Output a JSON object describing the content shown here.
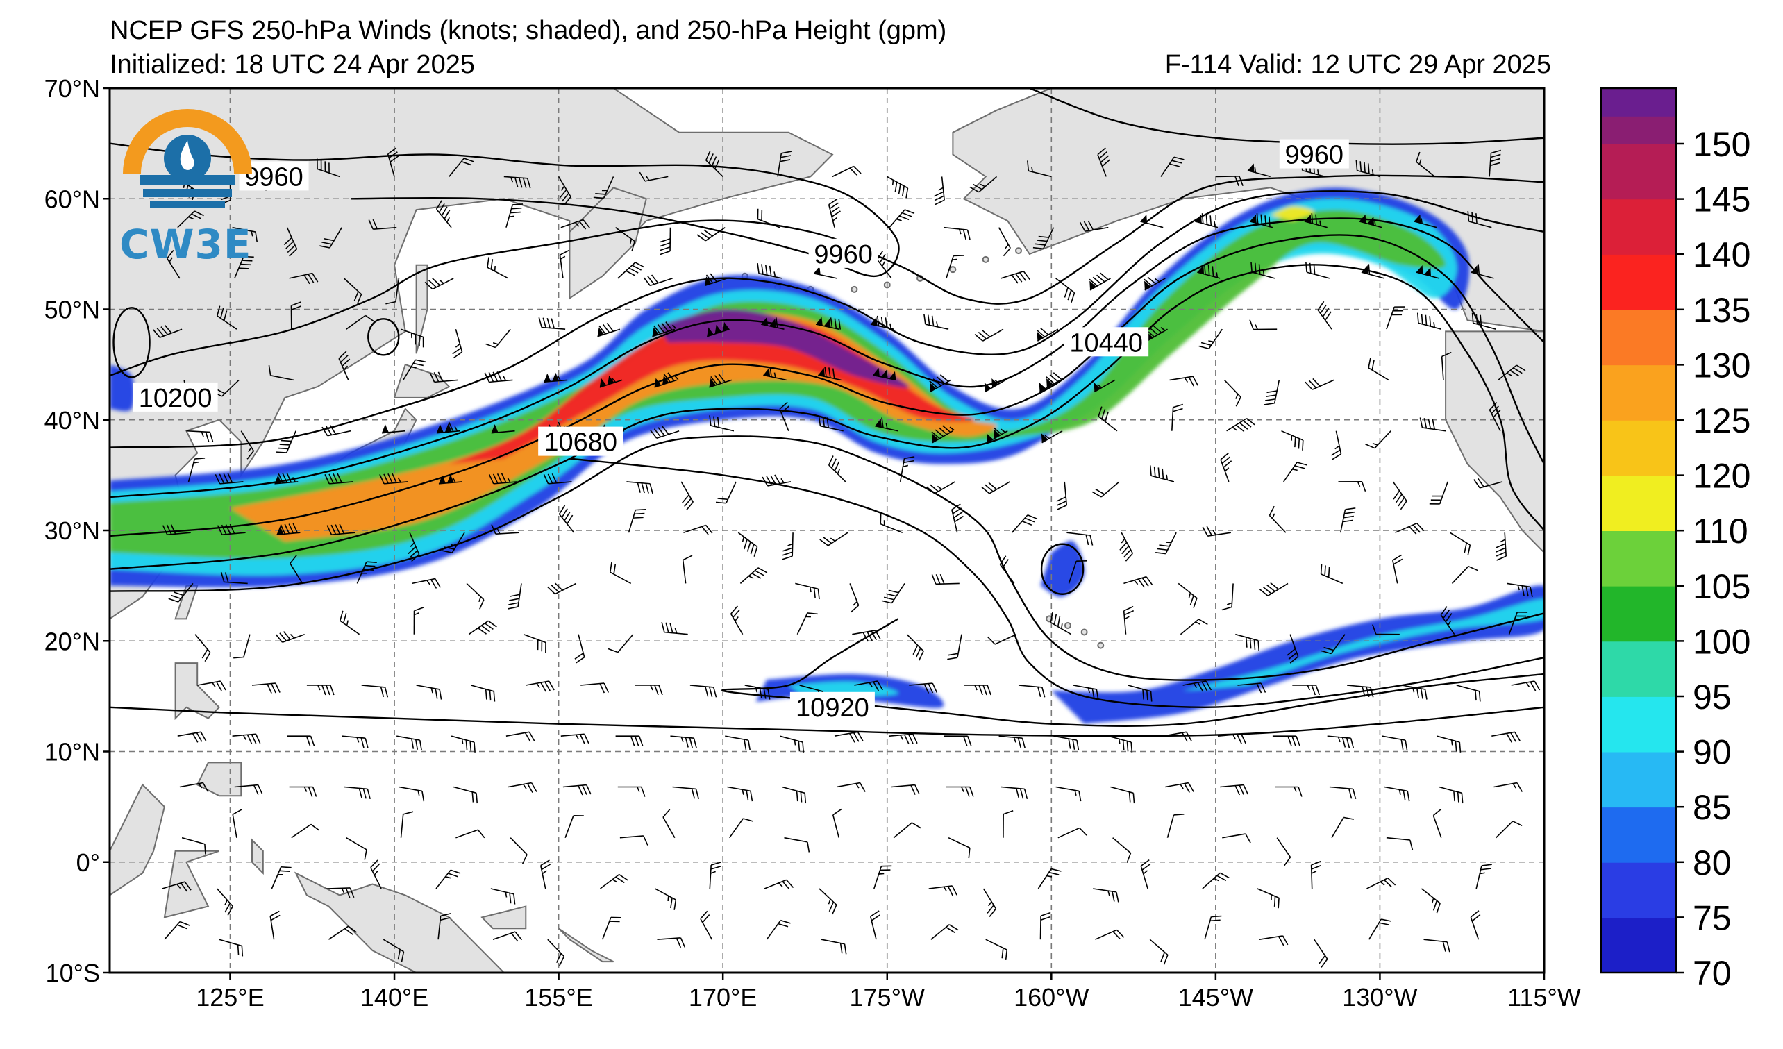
{
  "header": {
    "title": "NCEP GFS 250-hPa Winds (knots; shaded), and 250-hPa Height (gpm)",
    "initialized": "Initialized: 18 UTC 24 Apr 2025",
    "valid": "F-114  Valid: 12 UTC 29 Apr 2025"
  },
  "logo": {
    "text": "CW3E",
    "colors": [
      "#f39a1e",
      "#1c6fa8",
      "#2f8ac4"
    ]
  },
  "map": {
    "projection": "equirectangular (Pacific-centered)",
    "lon_range_deg_east": [
      114,
      245
    ],
    "lat_range": [
      -10,
      70
    ],
    "lat_ticks": [
      "70°N",
      "60°N",
      "50°N",
      "40°N",
      "30°N",
      "20°N",
      "10°N",
      "0°",
      "10°S"
    ],
    "lon_ticks": [
      "125°E",
      "140°E",
      "155°E",
      "170°E",
      "175°W",
      "160°W",
      "145°W",
      "130°W",
      "115°W"
    ],
    "land_color": "#e2e2e2",
    "coast_color": "#6e6e6e",
    "grid": true,
    "contour_labels": [
      {
        "text": "9960",
        "lon": 129,
        "lat": 62
      },
      {
        "text": "9960",
        "lon": 181,
        "lat": 55
      },
      {
        "text": "9960",
        "lon": 224,
        "lat": 64
      },
      {
        "text": "10200",
        "lon": 120,
        "lat": 42
      },
      {
        "text": "10440",
        "lon": 205,
        "lat": 47
      },
      {
        "text": "10680",
        "lon": 157,
        "lat": 38
      },
      {
        "text": "10920",
        "lon": 180,
        "lat": 14
      }
    ]
  },
  "colorbar": {
    "labels": [
      "150",
      "145",
      "140",
      "135",
      "130",
      "125",
      "120",
      "110",
      "105",
      "100",
      "95",
      "90",
      "85",
      "80",
      "75",
      "70"
    ],
    "colors": [
      "#1c1fc8",
      "#2a3de4",
      "#1e6bf0",
      "#27b9f4",
      "#25e6ee",
      "#2ed9a8",
      "#22b62a",
      "#6cd13a",
      "#f0ee20",
      "#f8c418",
      "#faa21e",
      "#fb7a25",
      "#fb231f",
      "#dc2038",
      "#b51d55",
      "#8a1e72",
      "#6a1e8f"
    ]
  }
}
